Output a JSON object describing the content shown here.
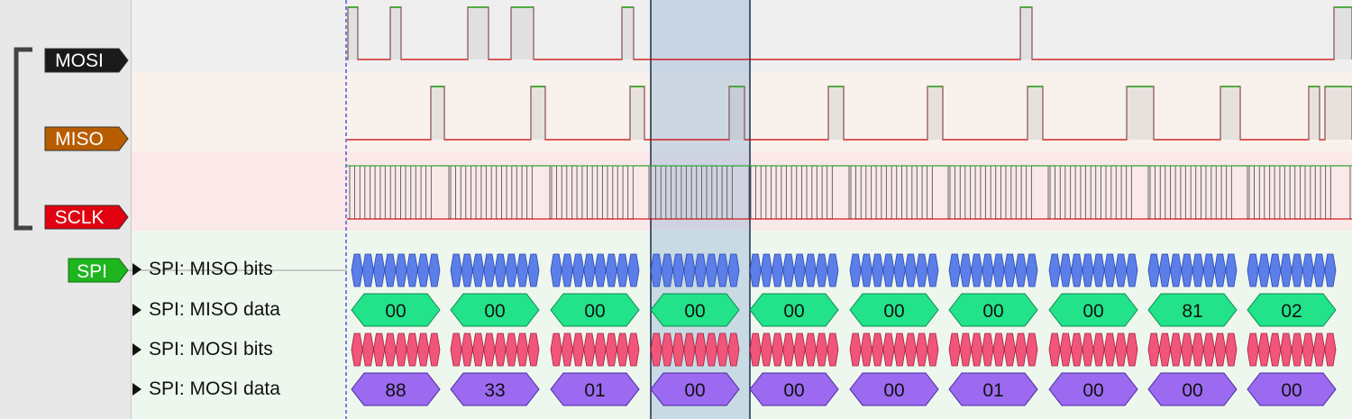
{
  "channels": [
    {
      "id": "mosi",
      "label": "MOSI",
      "color": "#1a1a1a"
    },
    {
      "id": "miso",
      "label": "MISO",
      "color": "#b85c00"
    },
    {
      "id": "sclk",
      "label": "SCLK",
      "color": "#e00010"
    }
  ],
  "decoder": {
    "label": "SPI",
    "color": "#1fb51f"
  },
  "rows": [
    {
      "label": "SPI: MISO bits"
    },
    {
      "label": "SPI: MISO data",
      "values": [
        "00",
        "00",
        "00",
        "00",
        "00",
        "00",
        "00",
        "00",
        "81",
        "02"
      ]
    },
    {
      "label": "SPI: MOSI bits"
    },
    {
      "label": "SPI: MOSI data",
      "values": [
        "88",
        "33",
        "01",
        "00",
        "00",
        "00",
        "01",
        "00",
        "00",
        "00"
      ]
    }
  ],
  "colors": {
    "mosi_bg": "#efefef",
    "miso_bg": "#f8f1ec",
    "sclk_bg": "#fbe9e9",
    "decoder_bg": "#eef7ee",
    "low_trace": "#cc0000",
    "high_trace": "#22aa22",
    "selection": "#9ab8d8",
    "miso_bits": "#5b7ee8",
    "miso_data": "#22e38a",
    "mosi_bits": "#f2557a",
    "mosi_data": "#9b6af0"
  }
}
